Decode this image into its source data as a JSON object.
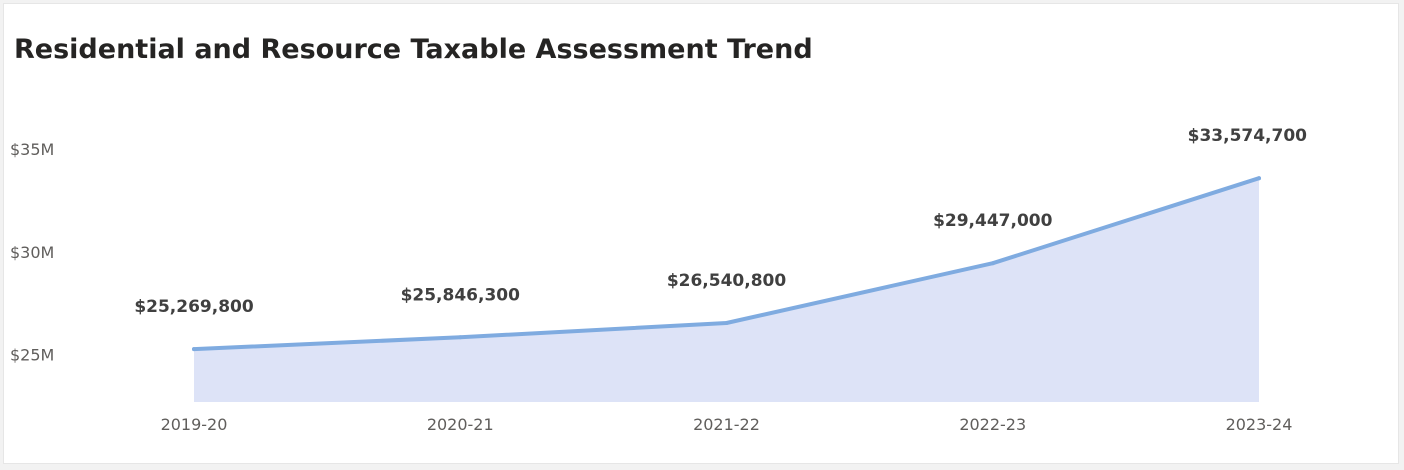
{
  "card": {
    "title": "Residential and Resource Taxable Assessment Trend"
  },
  "chart_data": {
    "type": "area",
    "title": "Residential and Resource Taxable Assessment Trend",
    "xlabel": "",
    "ylabel": "",
    "categories": [
      "2019-20",
      "2020-21",
      "2021-22",
      "2022-23",
      "2023-24"
    ],
    "values": [
      25269800,
      25846300,
      26540800,
      29447000,
      33574700
    ],
    "data_labels": [
      "$25,269,800",
      "$25,846,300",
      "$26,540,800",
      "$29,447,000",
      "$33,574,700"
    ],
    "y_ticks": [
      25000000,
      30000000,
      35000000
    ],
    "y_tick_labels": [
      "$25M",
      "$30M",
      "$35M"
    ],
    "ylim": [
      22700000,
      36600000
    ],
    "grid": false,
    "legend": "none",
    "colors": {
      "line": "#7fabe0",
      "fill": "#dde3f7",
      "label": "#404040",
      "tick": "#605e5c"
    }
  }
}
